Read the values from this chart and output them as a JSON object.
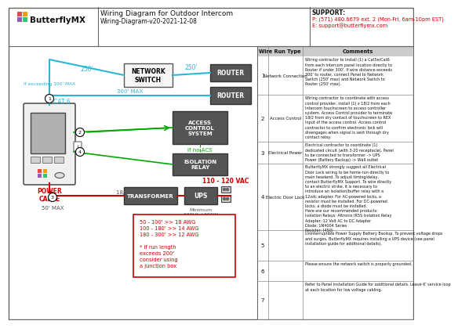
{
  "title": "Wiring Diagram for Outdoor Intercom",
  "subtitle": "Wiring-Diagram-v20-2021-12-08",
  "support_label": "SUPPORT:",
  "support_phone": "P: (571) 480.6679 ext. 2 (Mon-Fri, 6am-10pm EST)",
  "support_email": "E: support@butterflymx.com",
  "bg_color": "#ffffff",
  "cyan": "#29b8d8",
  "green": "#00aa00",
  "red": "#cc0000",
  "table_header_gray": "#cccccc",
  "box_dark": "#555555",
  "box_light": "#f5f5f5",
  "wire_rows": [
    {
      "num": "1",
      "type": "Network Connection",
      "comment": "Wiring contractor to install (1) a Cat5e/Cat6\nfrom each Intercom panel location directly to\nRouter if under 300'. If wire distance exceeds\n300' to router, connect Panel to Network\nSwitch (250' max) and Network Switch to\nRouter (250' max)."
    },
    {
      "num": "2",
      "type": "Access Control",
      "comment": "Wiring contractor to coordinate with access\ncontrol provider, install (1) x 18/2 from each\nIntercom touchscreen to access controller\nsystem. Access Control provider to terminate\n18/2 from dry contact of touchscreen to REX\nInput of the access control. Access control\ncontractor to confirm electronic lock will\ndisengages when signal is sent through dry\ncontact relay."
    },
    {
      "num": "3",
      "type": "Electrical Power",
      "comment": "Electrical contractor to coordinate (1)\ndedicated circuit (with 3-20 receptacle). Panel\nto be connected to transformer -> UPS\nPower (Battery Backup) -> Wall outlet"
    },
    {
      "num": "4",
      "type": "Electric Door Lock",
      "comment": "ButterflyMX strongly suggest all Electrical\nDoor Lock wiring to be home-run directly to\nmain headend. To adjust timing/delay,\ncontact ButterflyMX Support. To wire directly\nto an electric strike, it is necessary to\nintroduce an isolation/buffer relay with a\n12vdc adapter. For AC-powered locks, a\nresistor must be installed. For DC-powered\nlocks, a diode must be installed.\nHere are our recommended products:\nIsolation Relays: Altronix IR5S Isolation Relay\nAdapter: 12 Volt AC to DC Adapter\nDiode: 1N4004 Series\nResistor: (450)"
    },
    {
      "num": "5",
      "type": "",
      "comment": "Uninterruptible Power Supply Battery Backup. To prevent voltage drops\nand surges, ButterflyMX requires installing a UPS device (see panel\ninstallation guide for additional details)."
    },
    {
      "num": "6",
      "type": "",
      "comment": "Please ensure the network switch is properly grounded."
    },
    {
      "num": "7",
      "type": "",
      "comment": "Refer to Panel Installation Guide for additional details. Leave 6' service loop\nat each location for low voltage cabling."
    }
  ],
  "note_lines": [
    "50 - 100' >> 18 AWG",
    "100 - 180' >> 14 AWG",
    "180 - 300' >> 12 AWG",
    "",
    "* If run length",
    "exceeds 200'",
    "consider using",
    "a junction box"
  ]
}
